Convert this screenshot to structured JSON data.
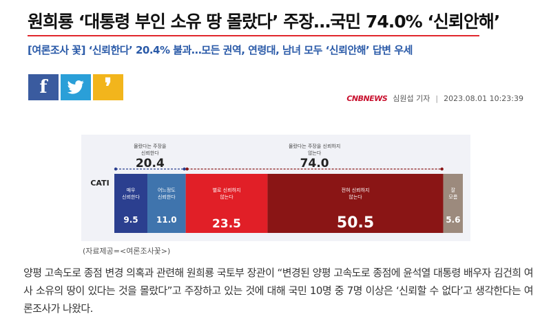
{
  "article": {
    "headline": "원희룡 ‘대통령 부인 소유 땅 몰랐다’ 주장…국민 74.0% ‘신뢰안해’",
    "subheadline": "[여론조사 꽃] ‘신뢰한다’ 20.4% 불과…모든 권역, 연령대, 남녀 모두 ‘신뢰안해’ 답변 우세",
    "source_logo": "CNBNEWS",
    "author": "심원섭 기자",
    "date": "2023.08.01 10:23:39",
    "image_caption": "(자료제공=<여론조사꽃>)",
    "body": "양평 고속도로 종점 변경 의혹과 관련해 원희룡 국토부 장관이 “변경된 양평 고속도로 종점에 윤석열 대통령 배우자 김건희 여사 소유의 땅이 있다는 것을 몰랐다”고 주장하고 있는 것에 대해 국민 10명 중 7명 이상은 ‘신뢰할 수 없다’고 생각한다는 여론조사가 나왔다."
  },
  "share": {
    "facebook_glyph": "f",
    "kakao_glyph": "❜",
    "facebook_color": "#3a5b9f",
    "twitter_color": "#2a9fd8",
    "kakao_color": "#f2b51c"
  },
  "chart_data": {
    "type": "bar",
    "orientation": "horizontal-stacked",
    "row_label": "CATI",
    "groups": [
      {
        "label": "몰랐다는 주장을 신뢰한다",
        "total": "20.4"
      },
      {
        "label": "몰랐다는 주장을 신뢰하지 않는다",
        "total": "74.0"
      }
    ],
    "segments": [
      {
        "name": "매우 신뢰한다",
        "value": 9.5,
        "color": "#2b3f8f"
      },
      {
        "name": "어느정도 신뢰한다",
        "value": 11.0,
        "color": "#3f74ad"
      },
      {
        "name": "별로 신뢰하지 않는다",
        "value": 23.5,
        "color": "#e11f27"
      },
      {
        "name": "전혀 신뢰하지 않는다",
        "value": 50.5,
        "color": "#8a1515"
      },
      {
        "name": "잘 모름",
        "value": 5.6,
        "color": "#9c8a7d"
      }
    ],
    "xlim": [
      0,
      100
    ]
  }
}
